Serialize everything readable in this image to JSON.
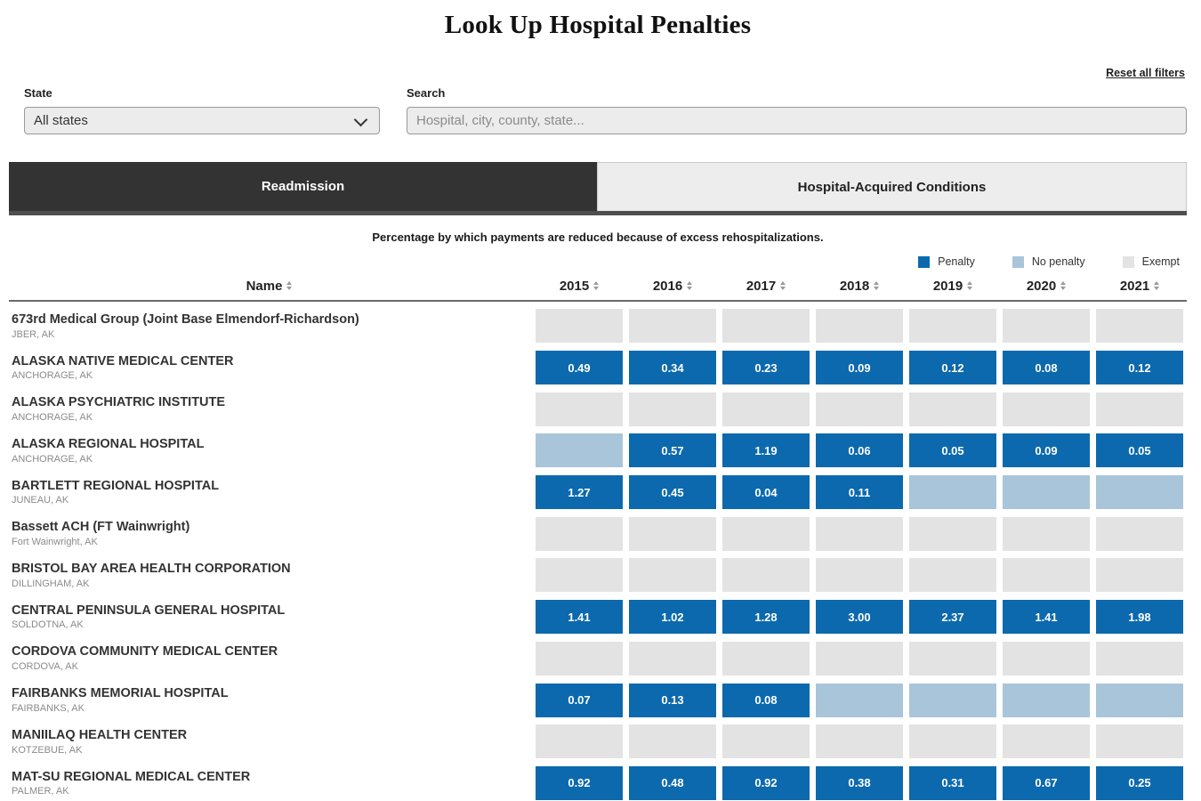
{
  "page": {
    "title": "Look Up Hospital Penalties"
  },
  "filters": {
    "reset_label": "Reset all filters",
    "state_label": "State",
    "state_value": "All states",
    "search_label": "Search",
    "search_placeholder": "Hospital, city, county, state..."
  },
  "tabs": [
    {
      "label": "Readmission",
      "active": true
    },
    {
      "label": "Hospital-Acquired Conditions",
      "active": false
    }
  ],
  "subtitle": "Percentage by which payments are reduced because of excess rehospitalizations.",
  "legend": [
    {
      "label": "Penalty",
      "status": "penalty",
      "color": "#0c69ae"
    },
    {
      "label": "No penalty",
      "status": "no_penalty",
      "color": "#a9c5d9"
    },
    {
      "label": "Exempt",
      "status": "exempt",
      "color": "#e3e3e3"
    }
  ],
  "table": {
    "name_header": "Name",
    "year_headers": [
      "2015",
      "2016",
      "2017",
      "2018",
      "2019",
      "2020",
      "2021"
    ],
    "rows": [
      {
        "name": "673rd Medical Group (Joint Base Elmendorf-Richardson)",
        "location": "JBER, AK",
        "cells": [
          {
            "status": "exempt",
            "value": null
          },
          {
            "status": "exempt",
            "value": null
          },
          {
            "status": "exempt",
            "value": null
          },
          {
            "status": "exempt",
            "value": null
          },
          {
            "status": "exempt",
            "value": null
          },
          {
            "status": "exempt",
            "value": null
          },
          {
            "status": "exempt",
            "value": null
          }
        ]
      },
      {
        "name": "ALASKA NATIVE MEDICAL CENTER",
        "location": "ANCHORAGE, AK",
        "cells": [
          {
            "status": "penalty",
            "value": "0.49"
          },
          {
            "status": "penalty",
            "value": "0.34"
          },
          {
            "status": "penalty",
            "value": "0.23"
          },
          {
            "status": "penalty",
            "value": "0.09"
          },
          {
            "status": "penalty",
            "value": "0.12"
          },
          {
            "status": "penalty",
            "value": "0.08"
          },
          {
            "status": "penalty",
            "value": "0.12"
          }
        ]
      },
      {
        "name": "ALASKA PSYCHIATRIC INSTITUTE",
        "location": "ANCHORAGE, AK",
        "cells": [
          {
            "status": "exempt",
            "value": null
          },
          {
            "status": "exempt",
            "value": null
          },
          {
            "status": "exempt",
            "value": null
          },
          {
            "status": "exempt",
            "value": null
          },
          {
            "status": "exempt",
            "value": null
          },
          {
            "status": "exempt",
            "value": null
          },
          {
            "status": "exempt",
            "value": null
          }
        ]
      },
      {
        "name": "ALASKA REGIONAL HOSPITAL",
        "location": "ANCHORAGE, AK",
        "cells": [
          {
            "status": "no_penalty",
            "value": null
          },
          {
            "status": "penalty",
            "value": "0.57"
          },
          {
            "status": "penalty",
            "value": "1.19"
          },
          {
            "status": "penalty",
            "value": "0.06"
          },
          {
            "status": "penalty",
            "value": "0.05"
          },
          {
            "status": "penalty",
            "value": "0.09"
          },
          {
            "status": "penalty",
            "value": "0.05"
          }
        ]
      },
      {
        "name": "BARTLETT REGIONAL HOSPITAL",
        "location": "JUNEAU, AK",
        "cells": [
          {
            "status": "penalty",
            "value": "1.27"
          },
          {
            "status": "penalty",
            "value": "0.45"
          },
          {
            "status": "penalty",
            "value": "0.04"
          },
          {
            "status": "penalty",
            "value": "0.11"
          },
          {
            "status": "no_penalty",
            "value": null
          },
          {
            "status": "no_penalty",
            "value": null
          },
          {
            "status": "no_penalty",
            "value": null
          }
        ]
      },
      {
        "name": "Bassett ACH (FT Wainwright)",
        "location": "Fort Wainwright, AK",
        "cells": [
          {
            "status": "exempt",
            "value": null
          },
          {
            "status": "exempt",
            "value": null
          },
          {
            "status": "exempt",
            "value": null
          },
          {
            "status": "exempt",
            "value": null
          },
          {
            "status": "exempt",
            "value": null
          },
          {
            "status": "exempt",
            "value": null
          },
          {
            "status": "exempt",
            "value": null
          }
        ]
      },
      {
        "name": "BRISTOL BAY AREA HEALTH CORPORATION",
        "location": "DILLINGHAM, AK",
        "cells": [
          {
            "status": "exempt",
            "value": null
          },
          {
            "status": "exempt",
            "value": null
          },
          {
            "status": "exempt",
            "value": null
          },
          {
            "status": "exempt",
            "value": null
          },
          {
            "status": "exempt",
            "value": null
          },
          {
            "status": "exempt",
            "value": null
          },
          {
            "status": "exempt",
            "value": null
          }
        ]
      },
      {
        "name": "CENTRAL PENINSULA GENERAL HOSPITAL",
        "location": "SOLDOTNA, AK",
        "cells": [
          {
            "status": "penalty",
            "value": "1.41"
          },
          {
            "status": "penalty",
            "value": "1.02"
          },
          {
            "status": "penalty",
            "value": "1.28"
          },
          {
            "status": "penalty",
            "value": "3.00"
          },
          {
            "status": "penalty",
            "value": "2.37"
          },
          {
            "status": "penalty",
            "value": "1.41"
          },
          {
            "status": "penalty",
            "value": "1.98"
          }
        ]
      },
      {
        "name": "CORDOVA COMMUNITY MEDICAL CENTER",
        "location": "CORDOVA, AK",
        "cells": [
          {
            "status": "exempt",
            "value": null
          },
          {
            "status": "exempt",
            "value": null
          },
          {
            "status": "exempt",
            "value": null
          },
          {
            "status": "exempt",
            "value": null
          },
          {
            "status": "exempt",
            "value": null
          },
          {
            "status": "exempt",
            "value": null
          },
          {
            "status": "exempt",
            "value": null
          }
        ]
      },
      {
        "name": "FAIRBANKS MEMORIAL HOSPITAL",
        "location": "FAIRBANKS, AK",
        "cells": [
          {
            "status": "penalty",
            "value": "0.07"
          },
          {
            "status": "penalty",
            "value": "0.13"
          },
          {
            "status": "penalty",
            "value": "0.08"
          },
          {
            "status": "no_penalty",
            "value": null
          },
          {
            "status": "no_penalty",
            "value": null
          },
          {
            "status": "no_penalty",
            "value": null
          },
          {
            "status": "no_penalty",
            "value": null
          }
        ]
      },
      {
        "name": "MANIILAQ HEALTH CENTER",
        "location": "KOTZEBUE, AK",
        "cells": [
          {
            "status": "exempt",
            "value": null
          },
          {
            "status": "exempt",
            "value": null
          },
          {
            "status": "exempt",
            "value": null
          },
          {
            "status": "exempt",
            "value": null
          },
          {
            "status": "exempt",
            "value": null
          },
          {
            "status": "exempt",
            "value": null
          },
          {
            "status": "exempt",
            "value": null
          }
        ]
      },
      {
        "name": "MAT-SU REGIONAL MEDICAL CENTER",
        "location": "PALMER, AK",
        "cells": [
          {
            "status": "penalty",
            "value": "0.92"
          },
          {
            "status": "penalty",
            "value": "0.48"
          },
          {
            "status": "penalty",
            "value": "0.92"
          },
          {
            "status": "penalty",
            "value": "0.38"
          },
          {
            "status": "penalty",
            "value": "0.31"
          },
          {
            "status": "penalty",
            "value": "0.67"
          },
          {
            "status": "penalty",
            "value": "0.25"
          }
        ]
      }
    ]
  }
}
